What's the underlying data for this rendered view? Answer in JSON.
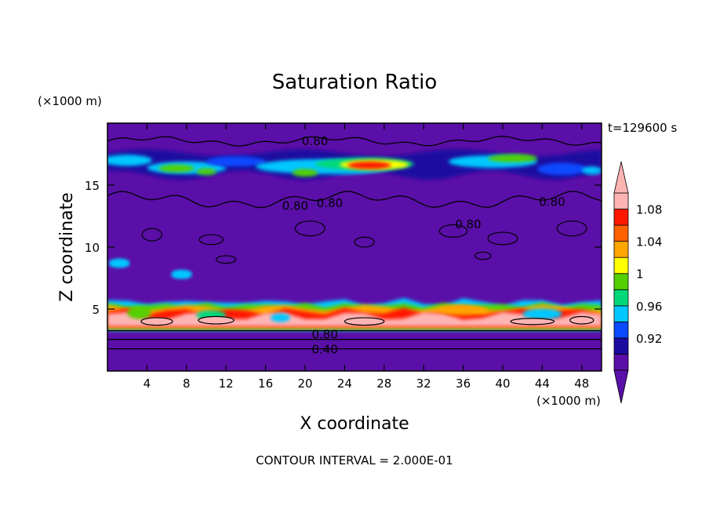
{
  "chart_data": {
    "type": "heatmap",
    "title": "Saturation Ratio",
    "xlabel": "X coordinate",
    "ylabel": "Z coordinate",
    "x_unit": "(×1000 m)",
    "y_unit": "(×1000 m)",
    "time_label": "t=129600 s",
    "footnote": "CONTOUR INTERVAL = 2.000E-01",
    "xlim": [
      0,
      50
    ],
    "ylim": [
      0,
      20
    ],
    "x_ticks": [
      "4",
      "8",
      "12",
      "16",
      "20",
      "24",
      "28",
      "32",
      "36",
      "40",
      "44",
      "48"
    ],
    "y_ticks": [
      "5",
      "10",
      "15"
    ],
    "colorbar": {
      "labels": [
        "0.92",
        "0.96",
        "1",
        "1.04",
        "1.08"
      ],
      "colors": [
        "#5a0fa8",
        "#1c0aa0",
        "#0a4aff",
        "#00c8ff",
        "#00d87a",
        "#54d000",
        "#ffff00",
        "#ffa500",
        "#ff6000",
        "#ff1800",
        "#ffb4b4"
      ],
      "background_color": "#5a0fa8"
    },
    "contour_labels": [
      {
        "text": "0.80",
        "x": 21,
        "z": 18.6
      },
      {
        "text": "0.80",
        "x": 19,
        "z": 13.4
      },
      {
        "text": "0.80",
        "x": 22.5,
        "z": 13.6
      },
      {
        "text": "0.80",
        "x": 36.5,
        "z": 11.9
      },
      {
        "text": "0.80",
        "x": 45,
        "z": 13.7
      },
      {
        "text": "0.80",
        "x": 22,
        "z": 3.0
      },
      {
        "text": "0.40",
        "x": 22,
        "z": 1.8
      }
    ],
    "notes": "2D saturation-ratio field: high-level moist band near z=16-17 km, saturated/supersaturated boundary layer near z=3-5.5 km, values ~0.8 elsewhere."
  }
}
